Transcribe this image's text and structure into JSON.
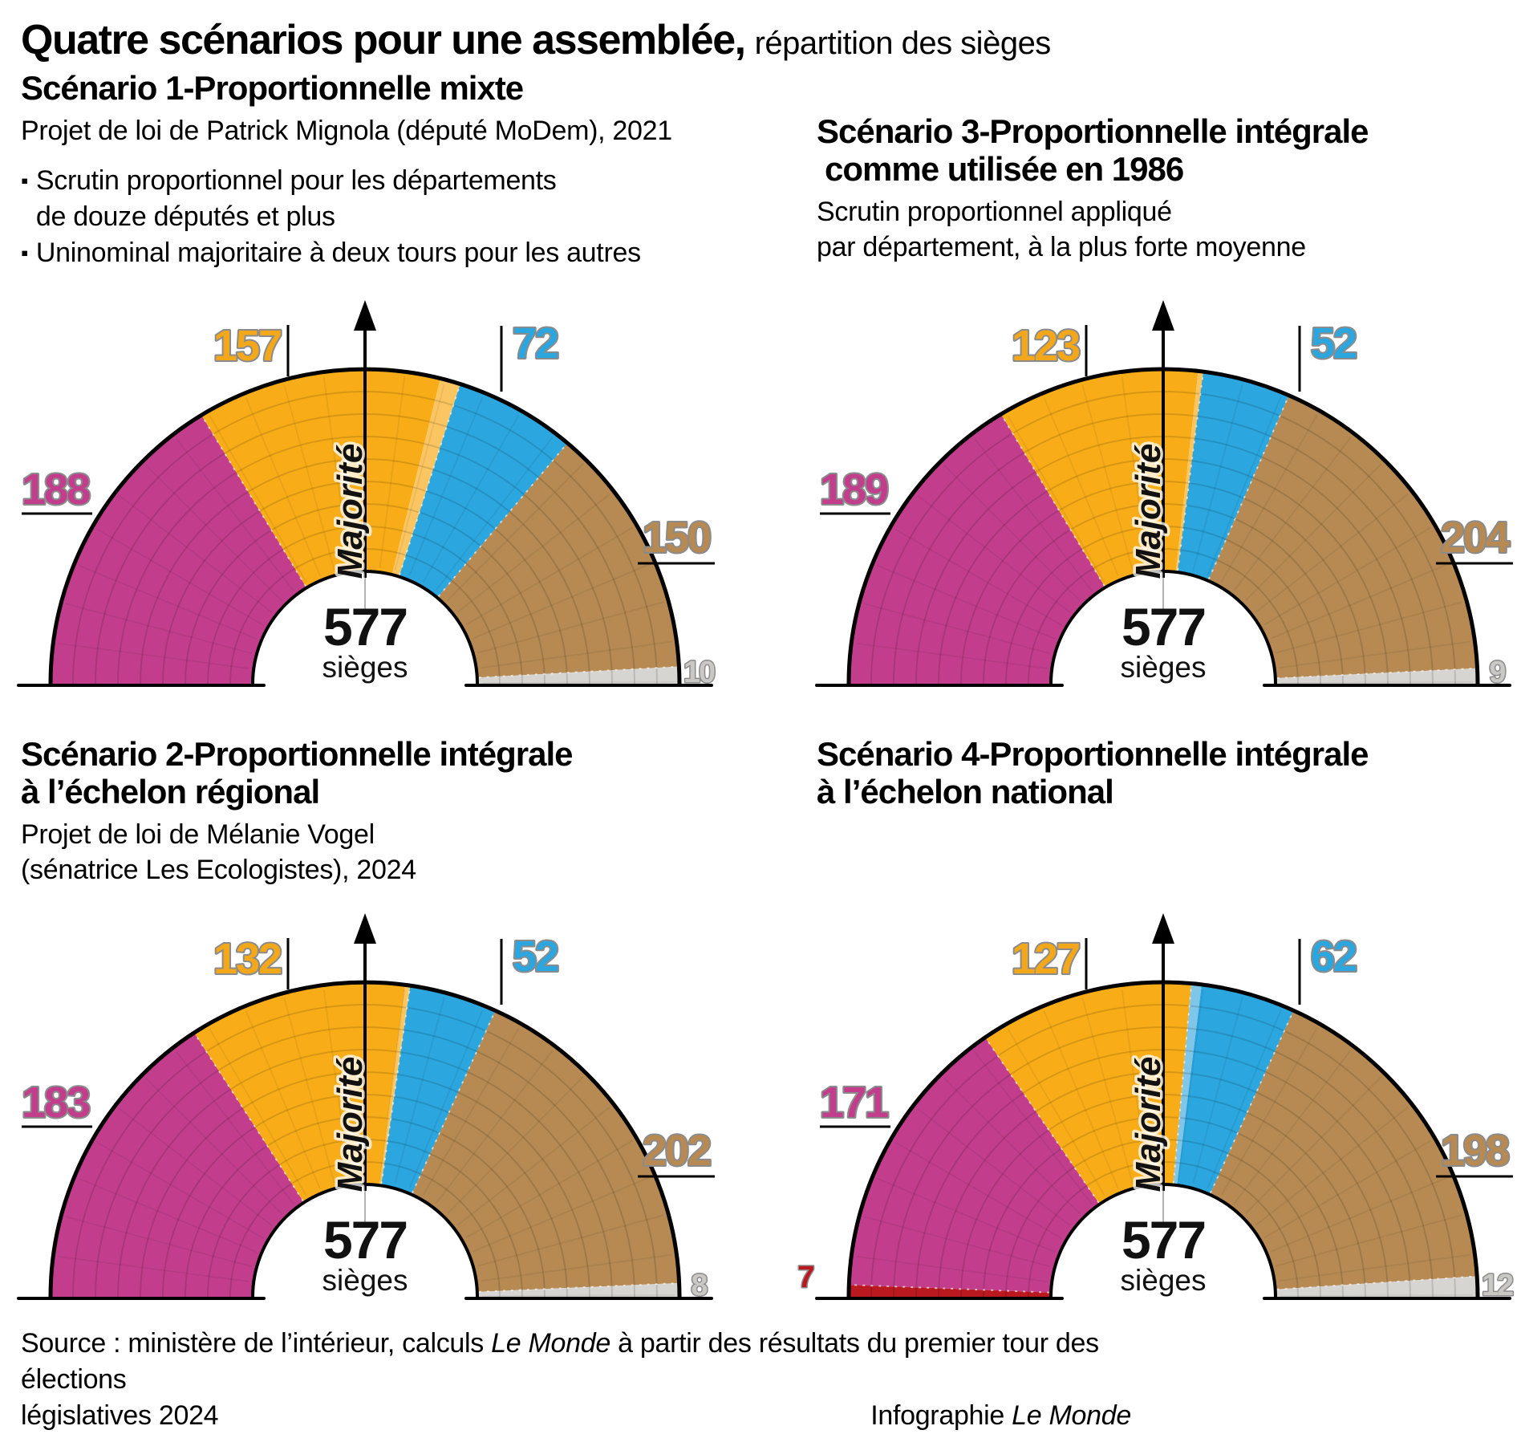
{
  "title": {
    "main": "Quatre scénarios pour une assemblée,",
    "suffix": "répartition des sièges"
  },
  "bullet_glyph": "▪",
  "scenarios": {
    "s1": {
      "heading": [
        "Scénario 1-Proportionnelle mixte"
      ],
      "subtitle": [
        "Projet de loi de Patrick Mignola (député MoDem), 2021"
      ],
      "bullets": [
        [
          "Scrutin proportionnel pour les départements",
          "de douze députés et plus"
        ],
        [
          "Uninominal majoritaire à deux tours pour les autres"
        ]
      ]
    },
    "s3": {
      "heading": [
        "Scénario 3-Proportionnelle intégrale",
        "comme utilisée en 1986"
      ],
      "subtitle": [
        "Scrutin proportionnel appliqué",
        "par département, à la plus forte moyenne"
      ]
    },
    "s2": {
      "heading": [
        "Scénario 2-Proportionnelle intégrale",
        "à l’échelon régional"
      ],
      "subtitle": [
        "Projet de loi de Mélanie Vogel",
        "(sénatrice Les Ecologistes), 2024"
      ]
    },
    "s4": {
      "heading": [
        "Scénario 4-Proportionnelle intégrale",
        "à l’échelon national"
      ]
    }
  },
  "chart_common": {
    "center_value": "577",
    "center_unit": "sièges",
    "majority_label": "Majorité",
    "total_seats": 577,
    "outline_color": "#000000",
    "number_outline_color": "#8b8b8b"
  },
  "chart_data": [
    {
      "type": "half-donut",
      "scenario": "Scénario 1-Proportionnelle mixte",
      "total": 577,
      "segments": [
        {
          "value": 188,
          "color": "#c23e8c",
          "label_pos": "left",
          "label_fill": "#c23e8c"
        },
        {
          "value": 157,
          "color": "#f8ad18",
          "label_pos": "top-left",
          "label_fill": "#f3a81c",
          "tail_highlight": {
            "seats": 12,
            "color": "#fbc661"
          }
        },
        {
          "value": 72,
          "color": "#2ba6df",
          "label_pos": "top-right",
          "label_fill": "#2ba6df"
        },
        {
          "value": 150,
          "color": "#b68a52",
          "label_pos": "right",
          "label_fill": "#b68a52"
        },
        {
          "value": 10,
          "color": "#d7d5d2",
          "label_pos": "bottom-right",
          "label_fill": "#c9c8c5"
        }
      ]
    },
    {
      "type": "half-donut",
      "scenario": "Scénario 3-Proportionnelle intégrale comme utilisée en 1986",
      "total": 577,
      "segments": [
        {
          "value": 189,
          "color": "#c23e8c",
          "label_pos": "left",
          "label_fill": "#c23e8c"
        },
        {
          "value": 123,
          "color": "#f8ad18",
          "label_pos": "top-left",
          "label_fill": "#f3a81c",
          "tail_highlight": {
            "seats": 3,
            "color": "#fbc661"
          }
        },
        {
          "value": 52,
          "color": "#2ba6df",
          "label_pos": "top-right",
          "label_fill": "#2ba6df"
        },
        {
          "value": 204,
          "color": "#b68a52",
          "label_pos": "right",
          "label_fill": "#b68a52"
        },
        {
          "value": 9,
          "color": "#d7d5d2",
          "label_pos": "bottom-right",
          "label_fill": "#c9c8c5"
        }
      ]
    },
    {
      "type": "half-donut",
      "scenario": "Scénario 2-Proportionnelle intégrale à l’échelon régional",
      "total": 577,
      "segments": [
        {
          "value": 183,
          "color": "#c23e8c",
          "label_pos": "left",
          "label_fill": "#c23e8c"
        },
        {
          "value": 132,
          "color": "#f8ad18",
          "label_pos": "top-left",
          "label_fill": "#f3a81c",
          "tail_highlight": {
            "seats": 3,
            "color": "#fbc661"
          }
        },
        {
          "value": 52,
          "color": "#2ba6df",
          "label_pos": "top-right",
          "label_fill": "#2ba6df"
        },
        {
          "value": 202,
          "color": "#b68a52",
          "label_pos": "right",
          "label_fill": "#b68a52"
        },
        {
          "value": 8,
          "color": "#d7d5d2",
          "label_pos": "bottom-right",
          "label_fill": "#c9c8c5"
        }
      ]
    },
    {
      "type": "half-donut",
      "scenario": "Scénario 4-Proportionnelle intégrale à l’échelon national",
      "total": 577,
      "segments": [
        {
          "value": 7,
          "color": "#b9191f",
          "label_pos": "bottom-left",
          "label_fill": "#b9191f"
        },
        {
          "value": 171,
          "color": "#c23e8c",
          "label_pos": "left",
          "label_fill": "#c23e8c"
        },
        {
          "value": 127,
          "color": "#f8ad18",
          "label_pos": "top-left",
          "label_fill": "#f3a81c"
        },
        {
          "value": 62,
          "color": "#2ba6df",
          "label_pos": "top-right",
          "label_fill": "#2ba6df",
          "head_highlight": {
            "seats": 6,
            "color": "#7fc6e8"
          }
        },
        {
          "value": 198,
          "color": "#b68a52",
          "label_pos": "right",
          "label_fill": "#b68a52"
        },
        {
          "value": 12,
          "color": "#d7d5d2",
          "label_pos": "bottom-right",
          "label_fill": "#c9c8c5"
        }
      ]
    }
  ],
  "footer": {
    "line1_pre": "Source : ministère de l’intérieur, calculs ",
    "line1_italic": "Le Monde",
    "line1_post": " à partir des résultats du premier tour des élections",
    "line2_left": "législatives 2024",
    "line2_right_pre": "Infographie ",
    "line2_right_italic": "Le Monde"
  }
}
